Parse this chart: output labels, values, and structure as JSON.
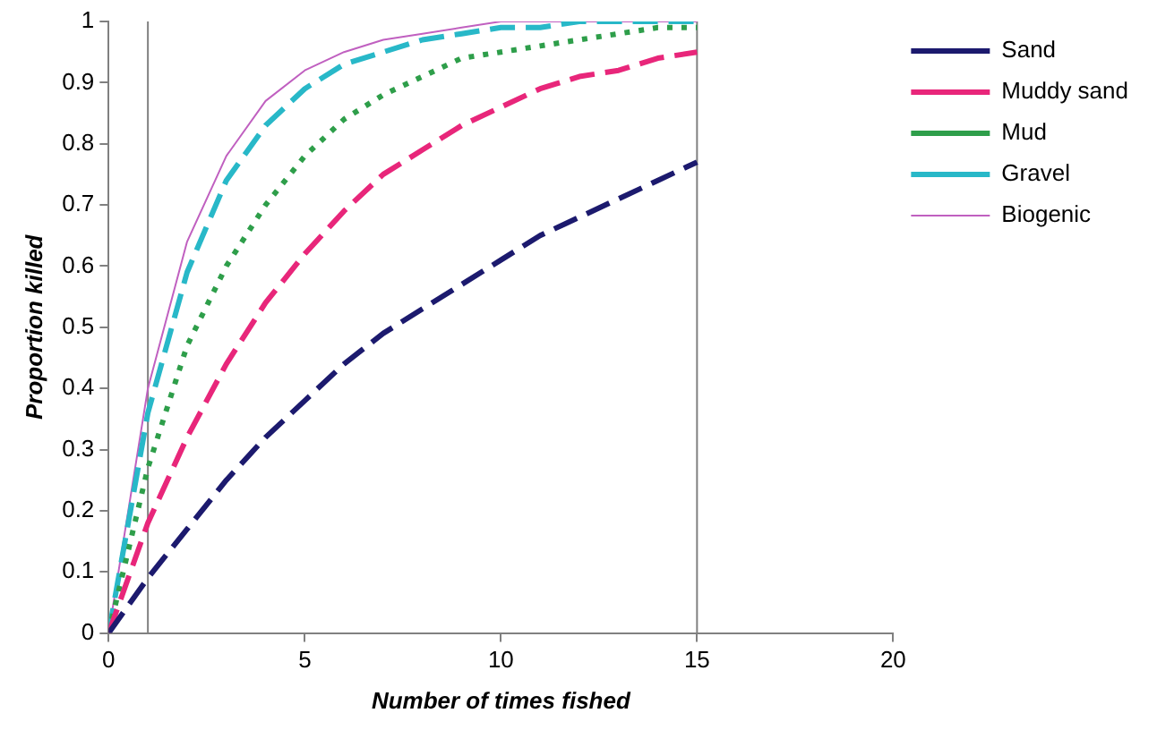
{
  "chart_data": {
    "type": "line",
    "xlabel": "Number of times fished",
    "ylabel": "Proportion killed",
    "x": [
      0,
      1,
      2,
      3,
      4,
      5,
      6,
      7,
      8,
      9,
      10,
      11,
      12,
      13,
      14,
      15
    ],
    "series": [
      {
        "name": "Sand",
        "color": "#1c1a6e",
        "line_style": "dashed",
        "values": [
          0,
          0.09,
          0.17,
          0.25,
          0.32,
          0.38,
          0.44,
          0.49,
          0.53,
          0.57,
          0.61,
          0.65,
          0.68,
          0.71,
          0.74,
          0.77
        ]
      },
      {
        "name": "Muddy sand",
        "color": "#e8267a",
        "line_style": "dashed",
        "values": [
          0,
          0.18,
          0.32,
          0.44,
          0.54,
          0.62,
          0.69,
          0.75,
          0.79,
          0.83,
          0.86,
          0.89,
          0.91,
          0.92,
          0.94,
          0.95
        ]
      },
      {
        "name": "Mud",
        "color": "#2e9e4a",
        "line_style": "dotted",
        "values": [
          0,
          0.27,
          0.47,
          0.6,
          0.7,
          0.78,
          0.84,
          0.88,
          0.91,
          0.94,
          0.95,
          0.96,
          0.97,
          0.98,
          0.99,
          0.99
        ]
      },
      {
        "name": "Gravel",
        "color": "#28b8c8",
        "line_style": "dashed",
        "values": [
          0,
          0.36,
          0.59,
          0.74,
          0.83,
          0.89,
          0.93,
          0.95,
          0.97,
          0.98,
          0.99,
          0.99,
          1,
          1,
          1,
          1
        ]
      },
      {
        "name": "Biogenic",
        "color": "#c060c0",
        "line_style": "solid",
        "values": [
          0,
          0.4,
          0.64,
          0.78,
          0.87,
          0.92,
          0.95,
          0.97,
          0.98,
          0.99,
          1,
          1,
          1,
          1,
          1,
          1
        ]
      }
    ],
    "ref_lines": [
      {
        "axis": "x",
        "value": 1,
        "color": "#808080"
      },
      {
        "axis": "x",
        "value": 15,
        "color": "#808080"
      }
    ],
    "xlim": [
      0,
      20
    ],
    "xticks": [
      0,
      5,
      10,
      15,
      20
    ],
    "ylim": [
      0,
      1
    ],
    "yticks": [
      0,
      0.1,
      0.2,
      0.3,
      0.4,
      0.5,
      0.6,
      0.7,
      0.8,
      0.9,
      1
    ],
    "grid": false,
    "legend": "right",
    "marker": "none"
  }
}
